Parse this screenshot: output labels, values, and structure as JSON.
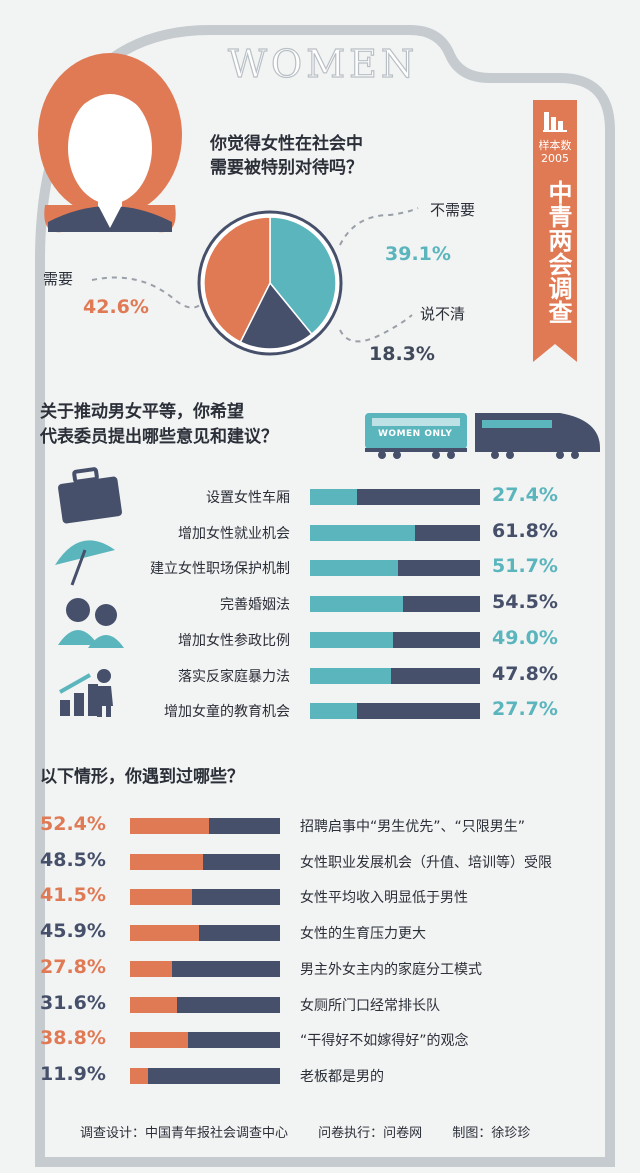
{
  "header": {
    "women_text": "WOMEN",
    "sample_label": "样本数",
    "sample_count": "2005",
    "brand": "中青两会调查"
  },
  "section1": {
    "question_line1": "你觉得女性在社会中",
    "question_line2": "需要被特别对待吗？"
  },
  "section2": {
    "question_line1": "关于推动男女平等，你希望",
    "question_line2": "代表委员提出哪些意见和建议？",
    "train_text": "WOMEN ONLY"
  },
  "section3": {
    "question": "以下情形，你遇到过哪些？"
  },
  "footer": {
    "design": "调查设计：中国青年报社会调查中心",
    "exec": "问卷执行：问卷网",
    "drawing": "制图：徐珍珍"
  },
  "colors": {
    "teal": "#5bb5bd",
    "dark": "#46506a",
    "orange": "#e07a55",
    "background": "#f2f3f3"
  },
  "chart_data": [
    {
      "type": "pie",
      "labels": [
        "不需要",
        "说不清",
        "需要"
      ],
      "values": [
        39.1,
        18.3,
        42.6
      ],
      "value_labels": [
        "39.1%",
        "18.3%",
        "42.6%"
      ],
      "colors": [
        "#5bb5bd",
        "#46506a",
        "#e07a55"
      ]
    },
    {
      "type": "bar",
      "orientation": "horizontal",
      "categories": [
        "设置女性车厢",
        "增加女性就业机会",
        "建立女性职场保护机制",
        "完善婚姻法",
        "增加女性参政比例",
        "落实反家庭暴力法",
        "增加女童的教育机会"
      ],
      "values": [
        27.4,
        61.8,
        51.7,
        54.5,
        49.0,
        47.8,
        27.7
      ],
      "value_labels": [
        "27.4%",
        "61.8%",
        "51.7%",
        "54.5%",
        "49.0%",
        "47.8%",
        "27.7%"
      ],
      "label_colors": [
        "teal",
        "dark",
        "teal",
        "dark",
        "teal",
        "dark",
        "teal"
      ],
      "xlim": [
        0,
        100
      ],
      "fill_color": "#5bb5bd",
      "track_color": "#46506a"
    },
    {
      "type": "bar",
      "orientation": "horizontal",
      "categories": [
        "招聘启事中“男生优先”、“只限男生”",
        "女性职业发展机会（升值、培训等）受限",
        "女性平均收入明显低于男性",
        "女性的生育压力更大",
        "男主外女主内的家庭分工模式",
        "女厕所门口经常排长队",
        "“干得好不如嫁得好”的观念",
        "老板都是男的"
      ],
      "values": [
        52.4,
        48.5,
        41.5,
        45.9,
        27.8,
        31.6,
        38.8,
        11.9
      ],
      "value_labels": [
        "52.4%",
        "48.5%",
        "41.5%",
        "45.9%",
        "27.8%",
        "31.6%",
        "38.8%",
        "11.9%"
      ],
      "label_colors": [
        "orange",
        "dark",
        "orange",
        "dark",
        "orange",
        "dark",
        "orange",
        "dark"
      ],
      "xlim": [
        0,
        100
      ],
      "fill_color": "#e07a55",
      "track_color": "#46506a"
    }
  ]
}
